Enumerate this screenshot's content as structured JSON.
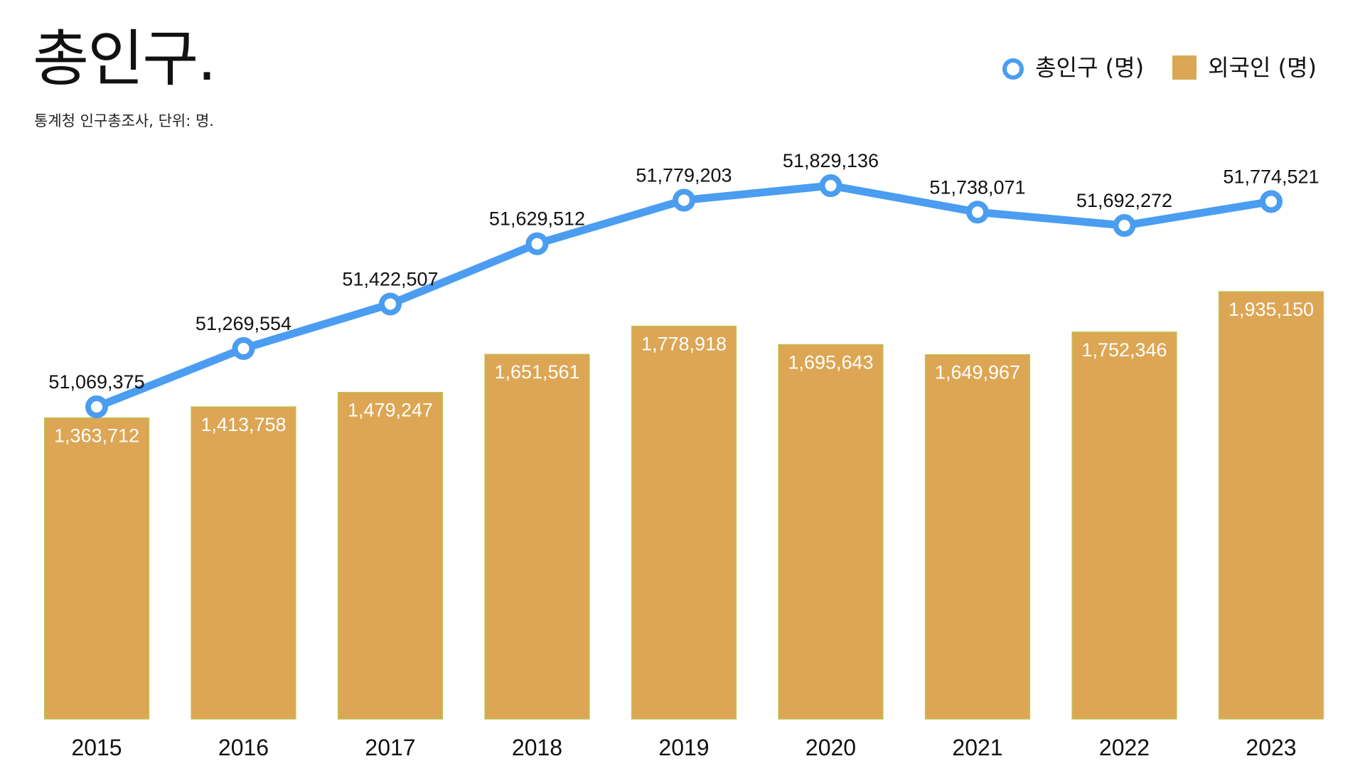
{
  "header": {
    "title": "총인구.",
    "subtitle": "통계청 인구총조사, 단위: 명."
  },
  "legend": {
    "items": [
      {
        "label": "총인구 (명)",
        "icon": "line-marker-icon"
      },
      {
        "label": "외국인 (명)",
        "icon": "bar-swatch-icon"
      }
    ]
  },
  "chart_data": {
    "type": "bar-line",
    "categories": [
      "2015",
      "2016",
      "2017",
      "2018",
      "2019",
      "2020",
      "2021",
      "2022",
      "2023"
    ],
    "series": [
      {
        "name": "총인구 (명)",
        "type": "line",
        "values": [
          51069375,
          51269554,
          51422507,
          51629512,
          51779203,
          51829136,
          51738071,
          51692272,
          51774521
        ],
        "value_labels": [
          "51,069,375",
          "51,269,554",
          "51,422,507",
          "51,629,512",
          "51,779,203",
          "51,829,136",
          "51,738,071",
          "51,692,272",
          "51,774,521"
        ],
        "color": "#4a9df0"
      },
      {
        "name": "외국인 (명)",
        "type": "bar",
        "values": [
          1363712,
          1413758,
          1479247,
          1651561,
          1778918,
          1695643,
          1649967,
          1752346,
          1935150
        ],
        "value_labels": [
          "1,363,712",
          "1,413,758",
          "1,479,247",
          "1,651,561",
          "1,778,918",
          "1,695,643",
          "1,649,967",
          "1,752,346",
          "1,935,150"
        ],
        "color": "#dca654"
      }
    ],
    "legend_position": "top-right",
    "grid": false
  }
}
